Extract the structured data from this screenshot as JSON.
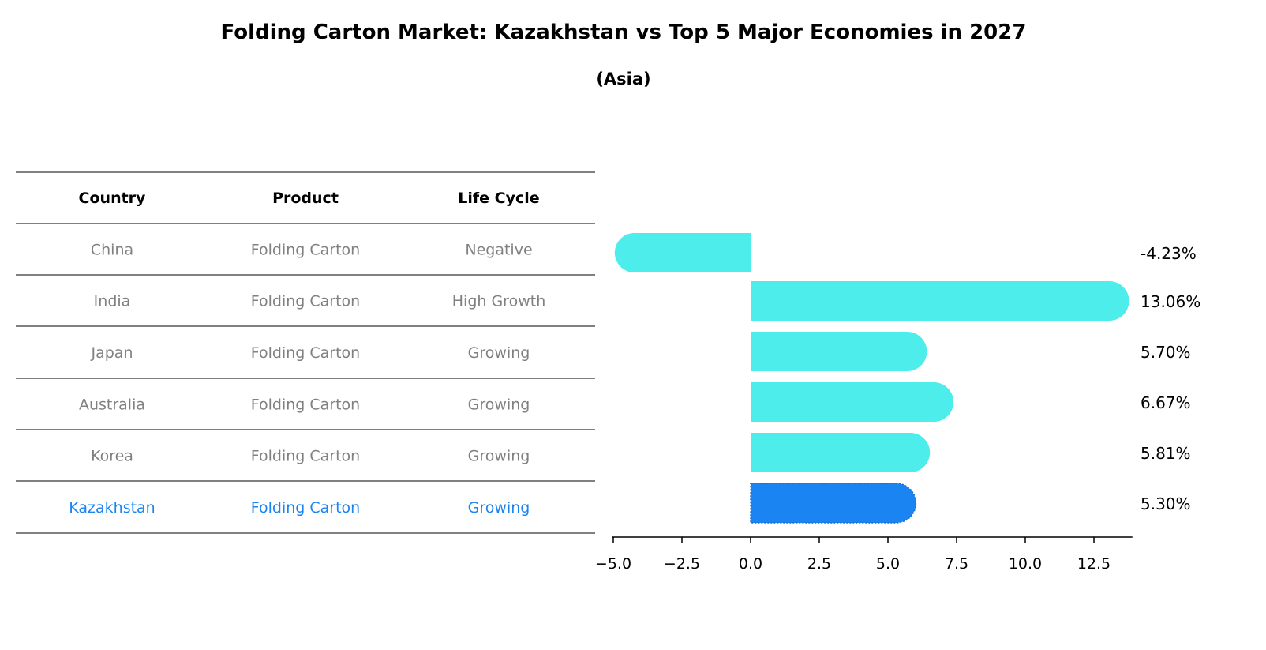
{
  "chart_data": {
    "type": "bar",
    "orientation": "horizontal",
    "title": "Folding Carton Market: Kazakhstan vs Top 5 Major Economies in 2027",
    "subtitle": "(Asia)",
    "table": {
      "headers": [
        "Country",
        "Product",
        "Life Cycle"
      ],
      "rows": [
        [
          "China",
          "Folding Carton",
          "Negative"
        ],
        [
          "India",
          "Folding Carton",
          "High Growth"
        ],
        [
          "Japan",
          "Folding Carton",
          "Growing"
        ],
        [
          "Australia",
          "Folding Carton",
          "Growing"
        ],
        [
          "Korea",
          "Folding Carton",
          "Growing"
        ],
        [
          "Kazakhstan",
          "Folding Carton",
          "Growing"
        ]
      ]
    },
    "categories": [
      "China",
      "India",
      "Japan",
      "Australia",
      "Korea",
      "Kazakhstan"
    ],
    "values": [
      -4.23,
      13.06,
      5.7,
      6.67,
      5.81,
      5.3
    ],
    "value_labels": [
      "-4.23%",
      "13.06%",
      "5.70%",
      "6.67%",
      "5.81%",
      "5.30%"
    ],
    "highlight": "Kazakhstan",
    "xlim": [
      -5.05,
      13.9
    ],
    "xticks": [
      -5.0,
      -2.5,
      0.0,
      2.5,
      5.0,
      7.5,
      10.0,
      12.5
    ],
    "xtick_labels": [
      "−5.0",
      "−2.5",
      "0.0",
      "2.5",
      "5.0",
      "7.5",
      "10.0",
      "12.5"
    ],
    "xlabel": "",
    "ylabel": "",
    "colors": {
      "bar": "#4CEDEB",
      "highlight": "#1A84F2",
      "muted_text": "#808080",
      "highlight_text": "#1A84F2"
    }
  }
}
